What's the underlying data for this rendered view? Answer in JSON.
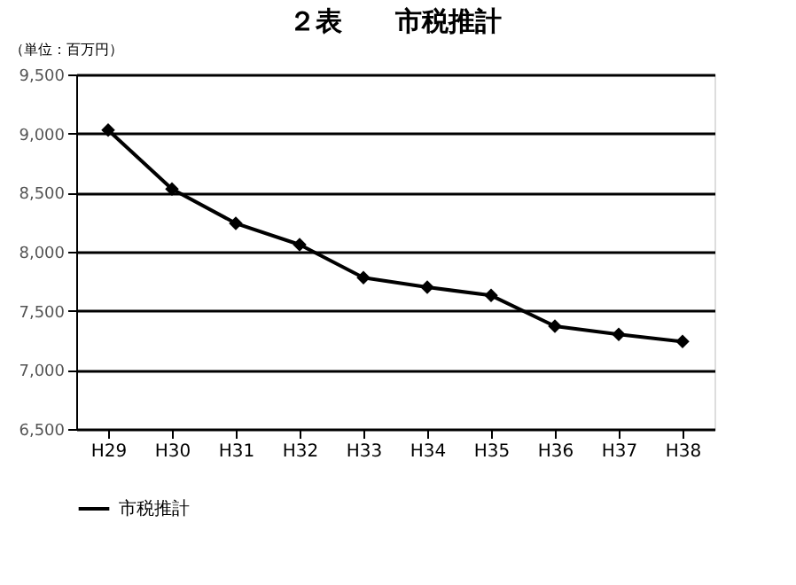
{
  "chart_data": {
    "type": "line",
    "title": "２表　　市税推計",
    "ylabel": "（単位：百万円）",
    "categories": [
      "H29",
      "H30",
      "H31",
      "H32",
      "H33",
      "H34",
      "H35",
      "H36",
      "H37",
      "H38"
    ],
    "series": [
      {
        "name": "市税推計",
        "color": "#000000",
        "values": [
          9030,
          8530,
          8240,
          8060,
          7780,
          7700,
          7630,
          7370,
          7300,
          7240
        ]
      }
    ],
    "ylim": [
      6500,
      9500
    ],
    "yticks": [
      {
        "value": 6500,
        "label": "6,500"
      },
      {
        "value": 7000,
        "label": "7,000"
      },
      {
        "value": 7500,
        "label": "7,500"
      },
      {
        "value": 8000,
        "label": "8,000"
      },
      {
        "value": 8500,
        "label": "8,500"
      },
      {
        "value": 9000,
        "label": "9,000"
      },
      {
        "value": 9500,
        "label": "9,500"
      }
    ],
    "grid": "y",
    "legend": "bottom",
    "marker": "diamond",
    "line_style": "solid"
  }
}
